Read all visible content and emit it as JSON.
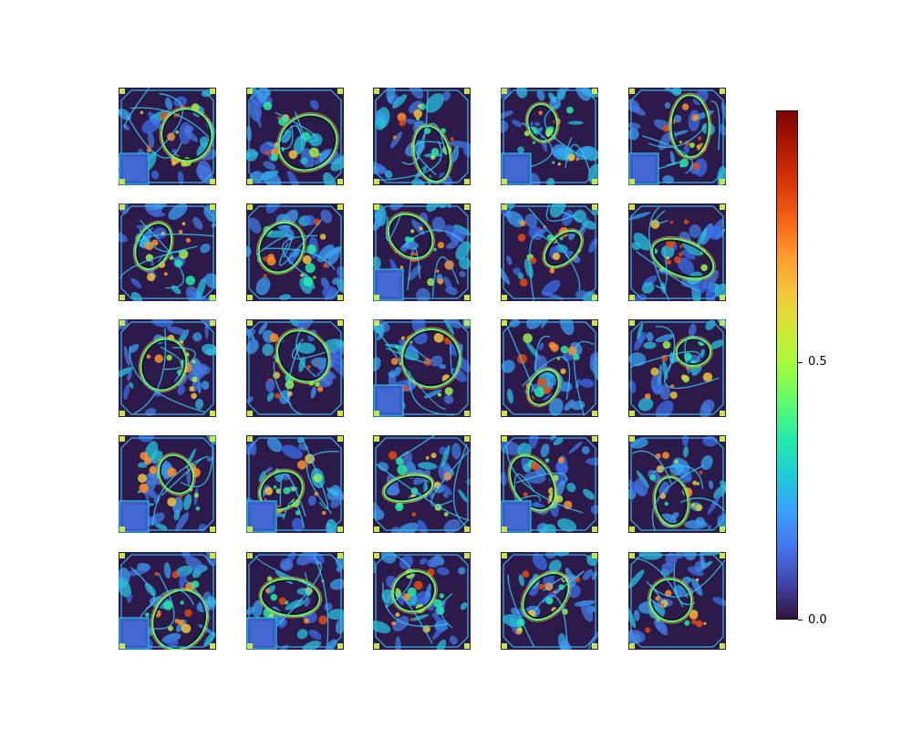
{
  "figure": {
    "grid_rows": 5,
    "grid_cols": 5,
    "tile_count": 25,
    "colormap": "turbo",
    "tile_background": "#2b1a4a",
    "tiles_with_inset": [
      0,
      3,
      4,
      7,
      12,
      15,
      16,
      18,
      20,
      21
    ]
  },
  "colorbar": {
    "ticks": [
      {
        "value": 0.0,
        "label": "0.0"
      },
      {
        "value": 0.5,
        "label": "0.5"
      }
    ],
    "range": [
      0.0,
      1.0
    ]
  }
}
